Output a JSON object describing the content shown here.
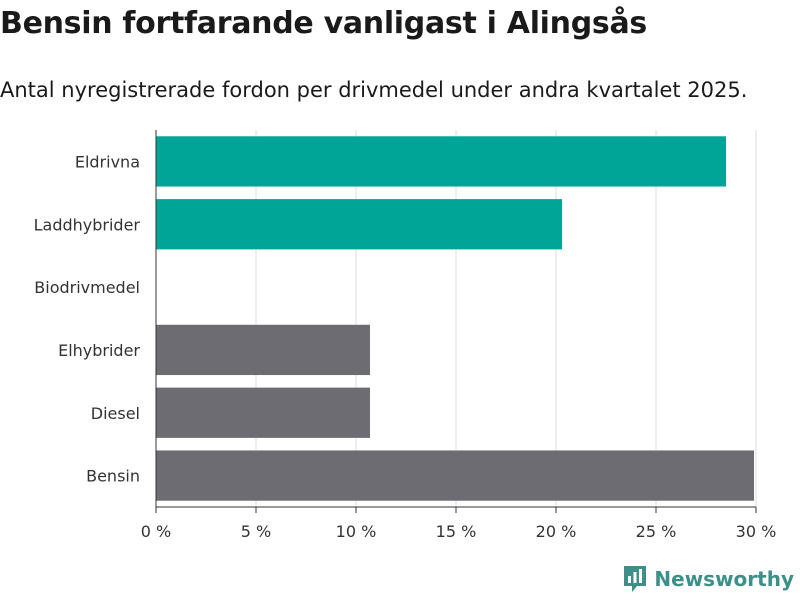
{
  "title": "Bensin fortfarande vanligast i Alingsås",
  "subtitle": "Antal nyregistrerade fordon per drivmedel under andra kvartalet 2025.",
  "brand": "Newsworthy",
  "colors": {
    "highlight": "#00a597",
    "neutral": "#6d6c73",
    "brand": "#3d8f8a"
  },
  "chart_data": {
    "type": "bar",
    "orientation": "horizontal",
    "categories": [
      "Eldrivna",
      "Laddhybrider",
      "Biodrivmedel",
      "Elhybrider",
      "Diesel",
      "Bensin"
    ],
    "values": [
      28.5,
      20.3,
      0,
      10.7,
      10.7,
      29.9
    ],
    "bar_colors": [
      "#00a597",
      "#00a597",
      "#6d6c73",
      "#6d6c73",
      "#6d6c73",
      "#6d6c73"
    ],
    "x_ticks": [
      0,
      5,
      10,
      15,
      20,
      25,
      30
    ],
    "x_tick_labels": [
      "0 %",
      "5 %",
      "10 %",
      "15 %",
      "20 %",
      "25 %",
      "30 %"
    ],
    "xlim": [
      0,
      30
    ],
    "grid": true
  }
}
